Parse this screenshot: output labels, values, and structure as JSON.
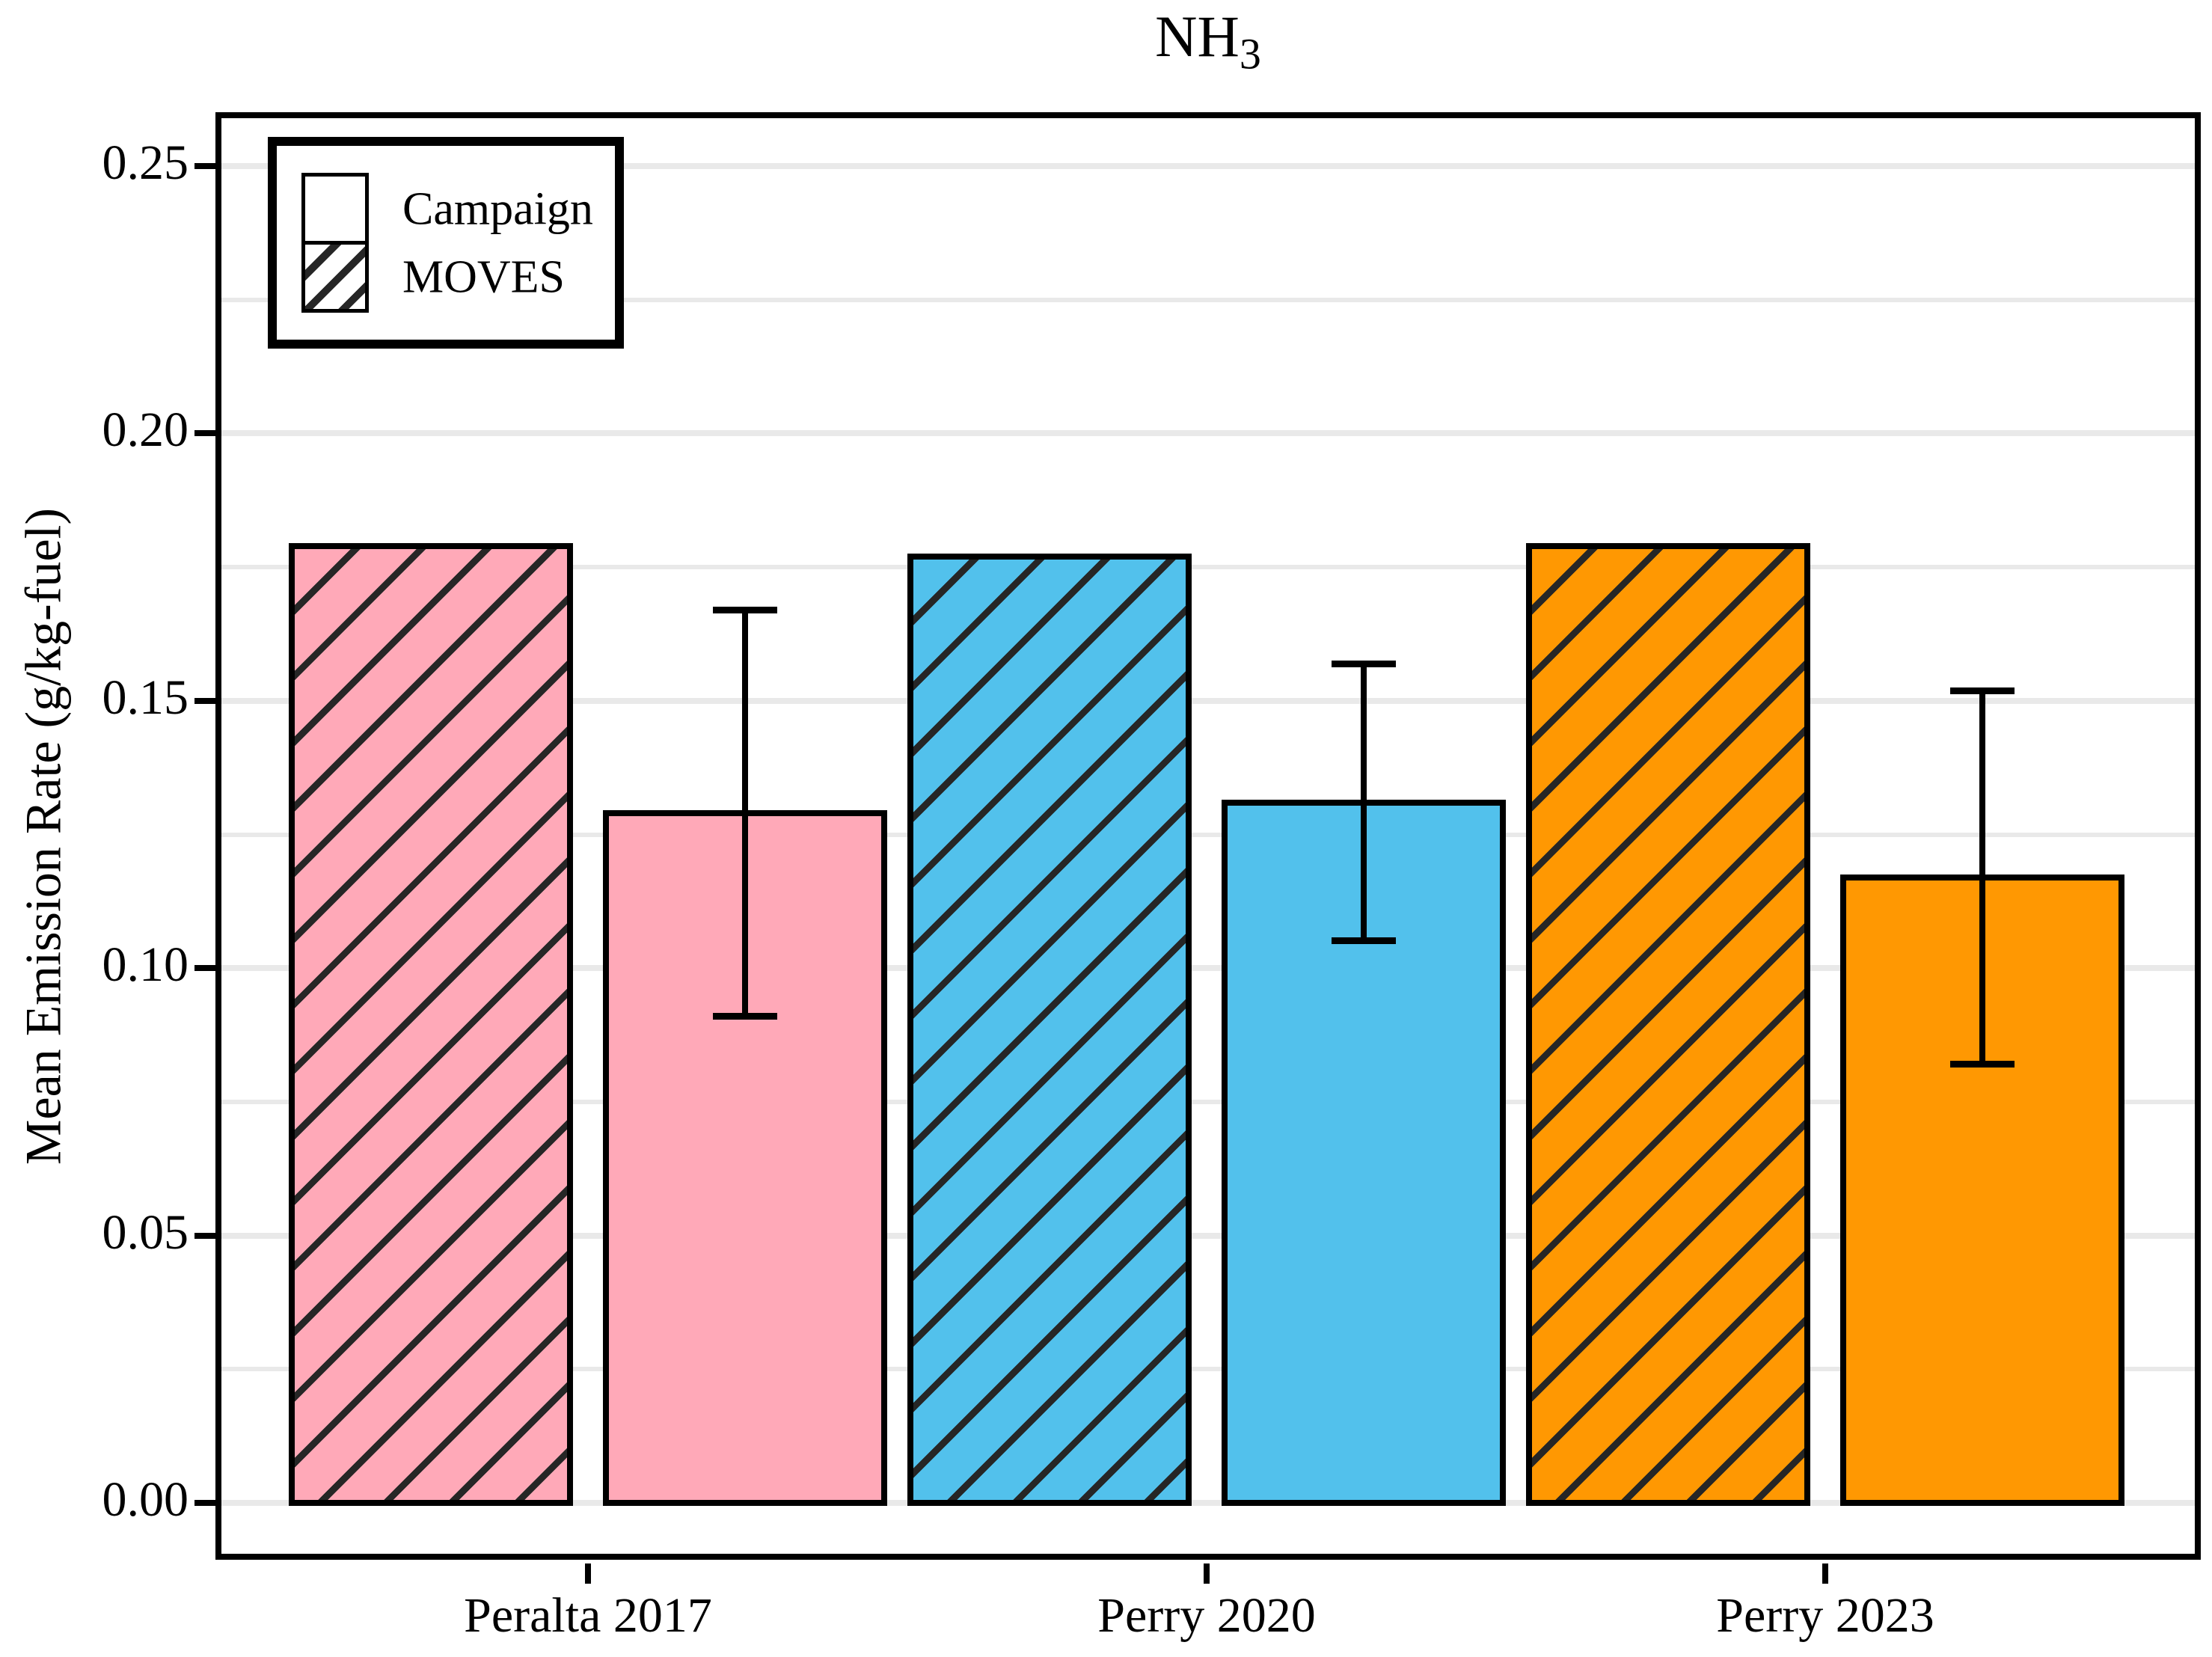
{
  "chart_data": {
    "type": "bar",
    "title": "NH3",
    "title_main": "NH",
    "title_sub": "3",
    "ylabel": "Mean Emission Rate (g/kg-fuel)",
    "xlabel": "",
    "categories": [
      "Peralta 2017",
      "Perry 2020",
      "Perry 2023"
    ],
    "series": [
      {
        "name": "MOVES",
        "pattern": "hatched",
        "values": [
          0.179,
          0.177,
          0.179
        ]
      },
      {
        "name": "Campaign",
        "pattern": "solid",
        "values": [
          0.129,
          0.131,
          0.117
        ],
        "error_low": [
          0.091,
          0.105,
          0.082
        ],
        "error_high": [
          0.167,
          0.157,
          0.152
        ]
      }
    ],
    "bar_order_in_group": [
      "MOVES",
      "Campaign"
    ],
    "group_colors": [
      "#FFA9B8",
      "#52C1EC",
      "#FF9802"
    ],
    "ylim": [
      0,
      0.26
    ],
    "yticks": [
      0,
      0.05,
      0.1,
      0.15,
      0.2,
      0.25
    ],
    "ytick_labels": [
      "0.00",
      "0.05",
      "0.10",
      "0.15",
      "0.20",
      "0.25"
    ],
    "minor_yticks": [
      0.025,
      0.075,
      0.125,
      0.175,
      0.225
    ],
    "grid": "horizontal major+minor",
    "legend": {
      "position": "top-left",
      "entries": [
        {
          "label": "Campaign",
          "pattern": "solid"
        },
        {
          "label": "MOVES",
          "pattern": "hatched"
        }
      ]
    },
    "colors": {
      "bar_outline": "#000000",
      "hatch_line": "#262626",
      "gridline": "#E9E9E9",
      "text": "#000000",
      "background": "#FFFFFF"
    }
  }
}
